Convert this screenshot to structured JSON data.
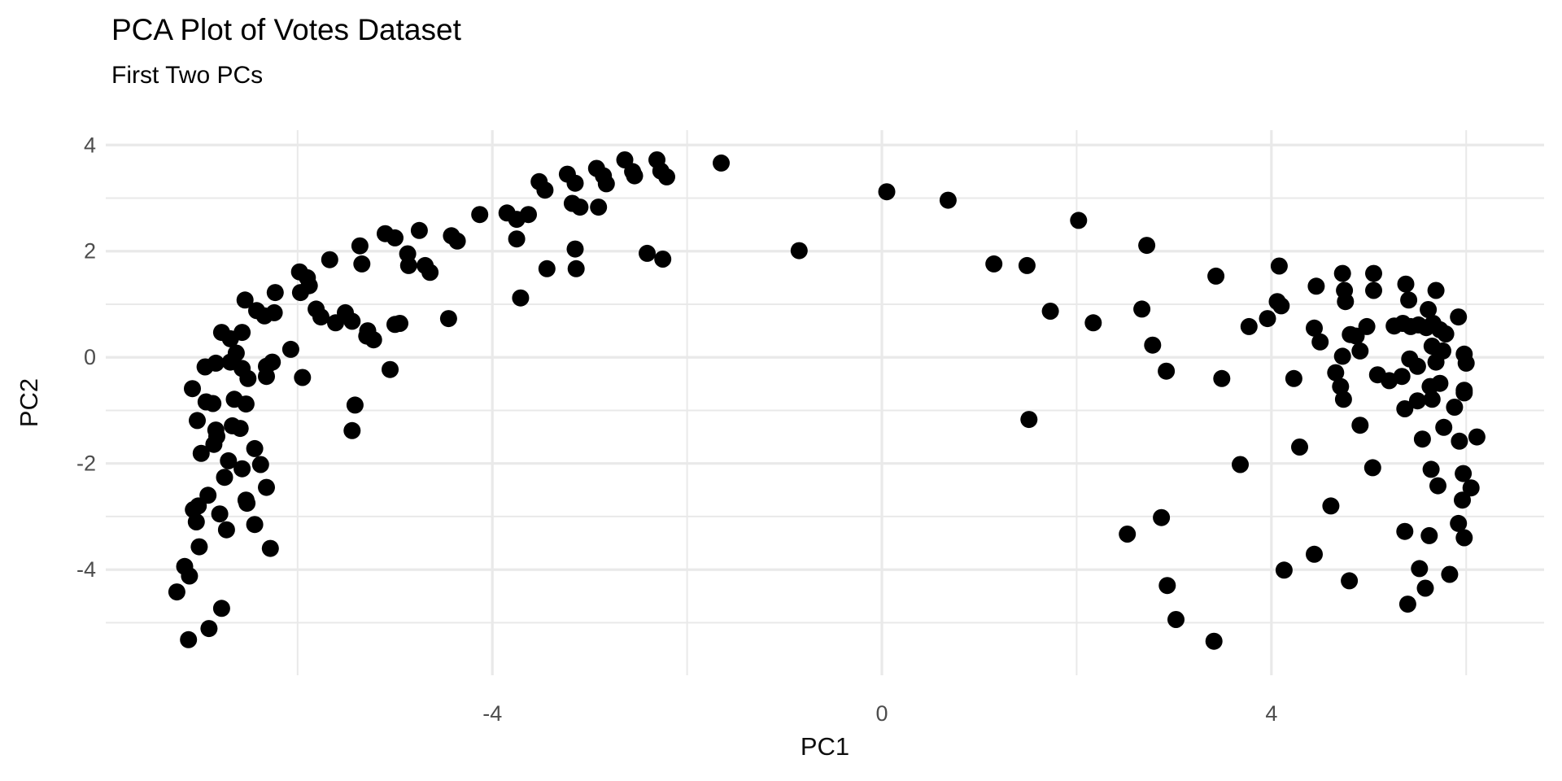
{
  "chart": {
    "title": "PCA Plot of Votes Dataset",
    "subtitle": "First Two PCs",
    "xlabel": "PC1",
    "ylabel": "PC2"
  },
  "chart_data": {
    "type": "scatter",
    "title": "PCA Plot of Votes Dataset",
    "subtitle": "First Two PCs",
    "xlabel": "PC1",
    "ylabel": "PC2",
    "legend": false,
    "grid": true,
    "background": "#ffffff",
    "point_color": "#000000",
    "grid_color": "#e9e9e9",
    "tick_label_color": "#4d4d4d",
    "title_color": "#000000",
    "xlim": [
      -7.97,
      6.8
    ],
    "ylim": [
      -5.99,
      4.28
    ],
    "x_major_ticks": [
      -4,
      0,
      4
    ],
    "x_minor_ticks": [
      -6,
      -2,
      2,
      6
    ],
    "y_major_ticks": [
      4,
      2,
      0,
      -2,
      -4
    ],
    "y_minor_ticks": [
      3,
      1,
      -1,
      -3,
      -5
    ],
    "x_tick_labels": [
      "-4",
      "0",
      "4"
    ],
    "y_tick_labels": [
      "4",
      "2",
      "0",
      "-2",
      "-4"
    ],
    "points": [
      [
        -5.1,
        2.33
      ],
      [
        -5.0,
        2.25
      ],
      [
        -4.75,
        2.39
      ],
      [
        -4.42,
        2.29
      ],
      [
        -4.36,
        2.19
      ],
      [
        -4.13,
        2.69
      ],
      [
        -5.36,
        2.1
      ],
      [
        -5.34,
        1.76
      ],
      [
        -5.67,
        1.84
      ],
      [
        -5.98,
        1.61
      ],
      [
        -5.9,
        1.5
      ],
      [
        -5.88,
        1.35
      ],
      [
        -5.97,
        1.22
      ],
      [
        -6.23,
        1.22
      ],
      [
        -6.54,
        1.08
      ],
      [
        -6.42,
        0.88
      ],
      [
        -6.34,
        0.78
      ],
      [
        -6.24,
        0.84
      ],
      [
        -5.81,
        0.91
      ],
      [
        -5.76,
        0.76
      ],
      [
        -5.61,
        0.65
      ],
      [
        -5.51,
        0.84
      ],
      [
        -5.44,
        0.68
      ],
      [
        -5.28,
        0.5
      ],
      [
        -5.22,
        0.33
      ],
      [
        -5.29,
        0.4
      ],
      [
        -5.0,
        0.62
      ],
      [
        -4.95,
        0.64
      ],
      [
        -5.05,
        -0.23
      ],
      [
        -4.87,
        1.95
      ],
      [
        -4.86,
        1.73
      ],
      [
        -4.69,
        1.73
      ],
      [
        -4.64,
        1.6
      ],
      [
        -4.45,
        0.73
      ],
      [
        -6.78,
        0.47
      ],
      [
        -6.69,
        0.35
      ],
      [
        -6.57,
        0.47
      ],
      [
        -6.63,
        0.08
      ],
      [
        -6.07,
        0.15
      ],
      [
        -6.95,
        -0.18
      ],
      [
        -6.84,
        -0.11
      ],
      [
        -6.69,
        -0.09
      ],
      [
        -6.57,
        -0.21
      ],
      [
        -6.32,
        -0.17
      ],
      [
        -6.26,
        -0.09
      ],
      [
        -6.32,
        -0.36
      ],
      [
        -5.95,
        -0.38
      ],
      [
        -6.51,
        -0.4
      ],
      [
        -7.08,
        -0.59
      ],
      [
        -7.03,
        -1.19
      ],
      [
        -6.94,
        -0.84
      ],
      [
        -6.87,
        -0.87
      ],
      [
        -6.65,
        -0.79
      ],
      [
        -6.53,
        -0.88
      ],
      [
        -6.67,
        -1.29
      ],
      [
        -6.59,
        -1.34
      ],
      [
        -6.84,
        -1.37
      ],
      [
        -6.83,
        -1.49
      ],
      [
        -6.86,
        -1.64
      ],
      [
        -6.99,
        -1.81
      ],
      [
        -6.44,
        -1.72
      ],
      [
        -6.71,
        -1.95
      ],
      [
        -6.75,
        -2.26
      ],
      [
        -6.38,
        -2.02
      ],
      [
        -6.57,
        -2.1
      ],
      [
        -6.32,
        -2.45
      ],
      [
        -6.53,
        -2.69
      ],
      [
        -6.92,
        -2.6
      ],
      [
        -7.02,
        -2.8
      ],
      [
        -7.07,
        -2.87
      ],
      [
        -7.04,
        -3.1
      ],
      [
        -6.8,
        -2.95
      ],
      [
        -6.52,
        -2.75
      ],
      [
        -6.73,
        -3.25
      ],
      [
        -6.44,
        -3.15
      ],
      [
        -6.28,
        -3.6
      ],
      [
        -7.01,
        -3.57
      ],
      [
        -7.16,
        -3.94
      ],
      [
        -7.11,
        -4.12
      ],
      [
        -7.24,
        -4.42
      ],
      [
        -6.78,
        -4.73
      ],
      [
        -6.91,
        -5.11
      ],
      [
        -7.12,
        -5.32
      ],
      [
        -5.41,
        -0.9
      ],
      [
        -5.44,
        -1.38
      ],
      [
        -3.85,
        2.72
      ],
      [
        -3.75,
        2.6
      ],
      [
        -3.63,
        2.69
      ],
      [
        -3.75,
        2.23
      ],
      [
        -3.52,
        3.31
      ],
      [
        -3.46,
        3.15
      ],
      [
        -3.23,
        3.45
      ],
      [
        -3.15,
        3.28
      ],
      [
        -3.18,
        2.9
      ],
      [
        -3.1,
        2.83
      ],
      [
        -2.93,
        3.56
      ],
      [
        -2.86,
        3.42
      ],
      [
        -2.83,
        3.27
      ],
      [
        -2.91,
        2.83
      ],
      [
        -2.64,
        3.72
      ],
      [
        -2.56,
        3.5
      ],
      [
        -2.54,
        3.42
      ],
      [
        -2.31,
        3.72
      ],
      [
        -2.27,
        3.51
      ],
      [
        -2.21,
        3.4
      ],
      [
        -1.65,
        3.66
      ],
      [
        -3.15,
        2.04
      ],
      [
        -3.14,
        1.67
      ],
      [
        -3.44,
        1.67
      ],
      [
        -3.71,
        1.12
      ],
      [
        -2.41,
        1.96
      ],
      [
        -2.25,
        1.85
      ],
      [
        -0.85,
        2.01
      ],
      [
        0.05,
        3.12
      ],
      [
        0.68,
        2.96
      ],
      [
        2.02,
        2.58
      ],
      [
        2.72,
        2.11
      ],
      [
        1.15,
        1.76
      ],
      [
        1.49,
        1.73
      ],
      [
        1.73,
        0.87
      ],
      [
        2.17,
        0.65
      ],
      [
        2.67,
        0.91
      ],
      [
        2.78,
        0.23
      ],
      [
        2.92,
        -0.26
      ],
      [
        1.51,
        -1.17
      ],
      [
        2.52,
        -3.33
      ],
      [
        2.87,
        -3.02
      ],
      [
        2.93,
        -4.3
      ],
      [
        3.02,
        -4.94
      ],
      [
        3.41,
        -5.35
      ],
      [
        3.43,
        1.53
      ],
      [
        4.08,
        1.72
      ],
      [
        4.46,
        1.34
      ],
      [
        4.73,
        1.58
      ],
      [
        4.75,
        1.26
      ],
      [
        4.76,
        1.05
      ],
      [
        4.06,
        1.05
      ],
      [
        4.1,
        0.97
      ],
      [
        3.77,
        0.58
      ],
      [
        3.96,
        0.73
      ],
      [
        4.44,
        0.55
      ],
      [
        4.5,
        0.29
      ],
      [
        4.81,
        0.43
      ],
      [
        5.05,
        1.58
      ],
      [
        5.05,
        1.26
      ],
      [
        4.87,
        0.4
      ],
      [
        4.91,
        0.12
      ],
      [
        4.73,
        0.02
      ],
      [
        4.66,
        -0.29
      ],
      [
        4.71,
        -0.55
      ],
      [
        4.98,
        0.58
      ],
      [
        5.38,
        1.38
      ],
      [
        5.41,
        1.08
      ],
      [
        5.69,
        1.26
      ],
      [
        5.61,
        0.9
      ],
      [
        5.92,
        0.76
      ],
      [
        5.26,
        0.59
      ],
      [
        5.35,
        0.64
      ],
      [
        5.43,
        0.58
      ],
      [
        5.51,
        0.61
      ],
      [
        5.59,
        0.56
      ],
      [
        5.66,
        0.64
      ],
      [
        5.73,
        0.52
      ],
      [
        5.79,
        0.44
      ],
      [
        5.98,
        0.06
      ],
      [
        6.0,
        -0.11
      ],
      [
        5.98,
        -0.62
      ],
      [
        5.65,
        0.21
      ],
      [
        5.69,
        -0.09
      ],
      [
        5.76,
        0.12
      ],
      [
        5.42,
        -0.03
      ],
      [
        5.5,
        -0.17
      ],
      [
        5.09,
        -0.33
      ],
      [
        5.21,
        -0.44
      ],
      [
        5.34,
        -0.36
      ],
      [
        5.63,
        -0.55
      ],
      [
        5.73,
        -0.49
      ],
      [
        4.23,
        -0.4
      ],
      [
        3.49,
        -0.4
      ],
      [
        5.37,
        -0.97
      ],
      [
        5.5,
        -0.82
      ],
      [
        5.65,
        -0.79
      ],
      [
        5.88,
        -0.94
      ],
      [
        5.98,
        -0.67
      ],
      [
        4.74,
        -0.79
      ],
      [
        4.91,
        -1.28
      ],
      [
        4.29,
        -1.69
      ],
      [
        3.68,
        -2.02
      ],
      [
        5.55,
        -1.54
      ],
      [
        5.77,
        -1.32
      ],
      [
        5.93,
        -1.58
      ],
      [
        6.11,
        -1.5
      ],
      [
        5.04,
        -2.08
      ],
      [
        5.64,
        -2.11
      ],
      [
        5.71,
        -2.42
      ],
      [
        5.97,
        -2.19
      ],
      [
        6.05,
        -2.46
      ],
      [
        5.96,
        -2.69
      ],
      [
        4.61,
        -2.8
      ],
      [
        5.37,
        -3.28
      ],
      [
        5.62,
        -3.36
      ],
      [
        5.92,
        -3.13
      ],
      [
        5.98,
        -3.4
      ],
      [
        4.44,
        -3.71
      ],
      [
        4.13,
        -4.01
      ],
      [
        4.8,
        -4.21
      ],
      [
        5.52,
        -3.98
      ],
      [
        5.58,
        -4.35
      ],
      [
        5.4,
        -4.65
      ],
      [
        5.83,
        -4.09
      ]
    ]
  }
}
